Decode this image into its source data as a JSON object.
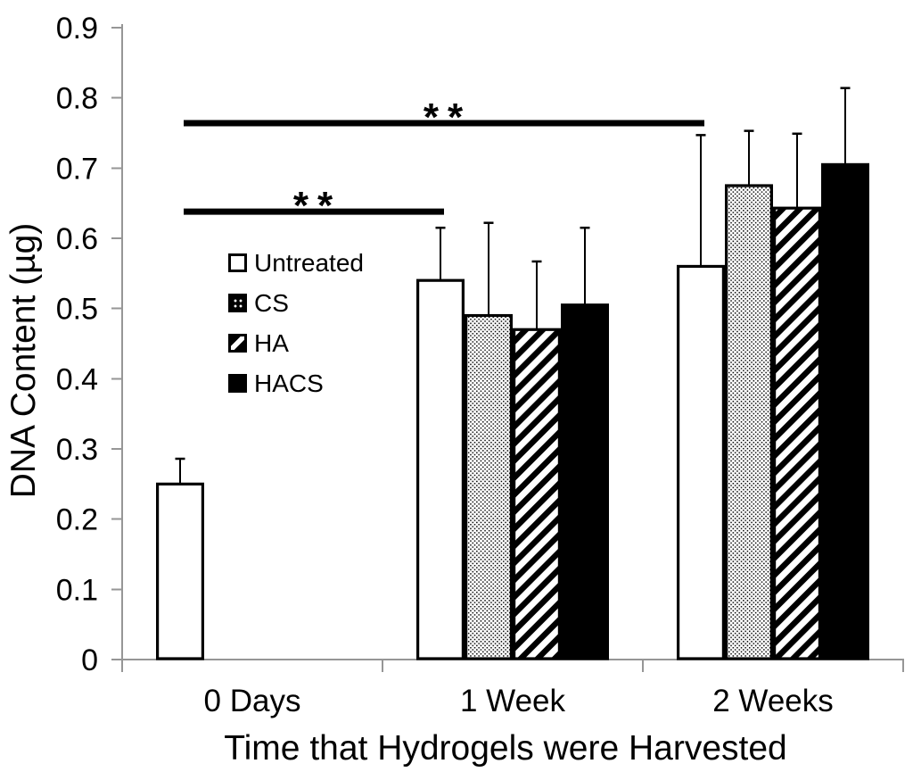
{
  "chart_data": {
    "type": "bar",
    "title": "",
    "xlabel": "Time that Hydrogels were Harvested",
    "ylabel": "DNA Content (µg)",
    "categories": [
      "0 Days",
      "1 Week",
      "2 Weeks"
    ],
    "series": [
      {
        "name": "Untreated",
        "pattern": "white-outline",
        "values": [
          0.25,
          0.54,
          0.56
        ],
        "errors_up": [
          0.036,
          0.075,
          0.187
        ]
      },
      {
        "name": "CS",
        "pattern": "dots",
        "values": [
          null,
          0.49,
          0.675
        ],
        "errors_up": [
          null,
          0.132,
          0.078
        ]
      },
      {
        "name": "HA",
        "pattern": "diagonal-stripes",
        "values": [
          null,
          0.47,
          0.643
        ],
        "errors_up": [
          null,
          0.097,
          0.106
        ]
      },
      {
        "name": "HACS",
        "pattern": "solid-black",
        "values": [
          null,
          0.505,
          0.705
        ],
        "errors_up": [
          null,
          0.11,
          0.109
        ]
      }
    ],
    "ylim": [
      0,
      0.9
    ],
    "ytick_labels": [
      "0",
      "0.1",
      "0.2",
      "0.3",
      "0.4",
      "0.5",
      "0.6",
      "0.7",
      "0.8",
      "0.9"
    ],
    "ytick_values": [
      0,
      0.1,
      0.2,
      0.3,
      0.4,
      0.5,
      0.6,
      0.7,
      0.8,
      0.9
    ],
    "grid": false,
    "legend_position": "inside-plot-upper-left",
    "significance_bars": [
      {
        "label": "**",
        "from_category": 0,
        "to_category": 1,
        "series": 0,
        "y": 0.638
      },
      {
        "label": "**",
        "from_category": 0,
        "to_category": 2,
        "series": 0,
        "y": 0.764
      }
    ],
    "colors": {
      "foreground": "#000000",
      "background": "#ffffff",
      "axis": "#969696"
    }
  }
}
